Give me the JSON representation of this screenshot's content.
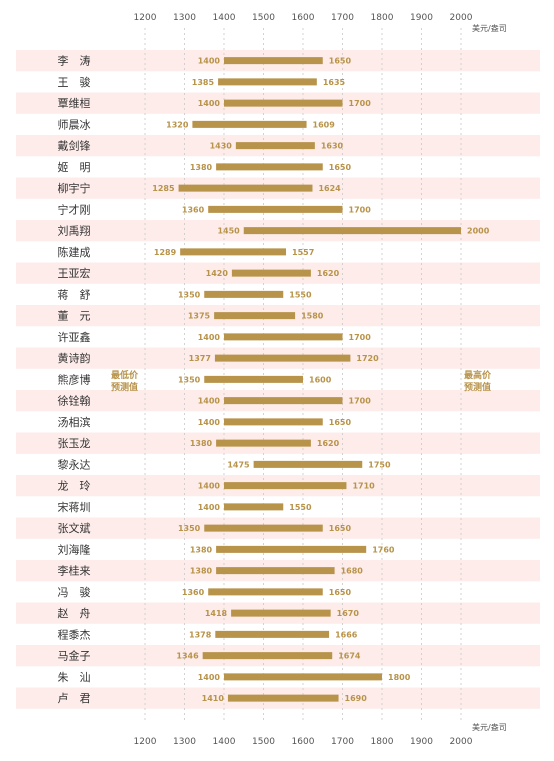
{
  "chart_data": {
    "type": "bar",
    "subtype": "floating-range",
    "unit": "美元/盎司",
    "left_label": [
      "最低价",
      "预测值"
    ],
    "right_label": [
      "最高价",
      "预测值"
    ],
    "xlim": [
      1200,
      2000
    ],
    "xticks": [
      1200,
      1300,
      1400,
      1500,
      1600,
      1700,
      1800,
      1900,
      2000
    ],
    "grid": true,
    "colors": {
      "bar": "#b8934a",
      "stripe": "#fdecea",
      "label": "#b8934a"
    },
    "rows": [
      {
        "name": "李　涛",
        "low": 1400,
        "high": 1650
      },
      {
        "name": "王　骏",
        "low": 1385,
        "high": 1635
      },
      {
        "name": "覃维桓",
        "low": 1400,
        "high": 1700
      },
      {
        "name": "师晨冰",
        "low": 1320,
        "high": 1609
      },
      {
        "name": "戴剑锋",
        "low": 1430,
        "high": 1630
      },
      {
        "name": "姬　明",
        "low": 1380,
        "high": 1650
      },
      {
        "name": "柳宇宁",
        "low": 1285,
        "high": 1624
      },
      {
        "name": "宁才刚",
        "low": 1360,
        "high": 1700
      },
      {
        "name": "刘禹翔",
        "low": 1450,
        "high": 2000
      },
      {
        "name": "陈建成",
        "low": 1289,
        "high": 1557
      },
      {
        "name": "王亚宏",
        "low": 1420,
        "high": 1620
      },
      {
        "name": "蒋　舒",
        "low": 1350,
        "high": 1550
      },
      {
        "name": "董　元",
        "low": 1375,
        "high": 1580
      },
      {
        "name": "许亚鑫",
        "low": 1400,
        "high": 1700
      },
      {
        "name": "黄诗韵",
        "low": 1377,
        "high": 1720
      },
      {
        "name": "熊彦博",
        "low": 1350,
        "high": 1600
      },
      {
        "name": "徐铨翰",
        "low": 1400,
        "high": 1700
      },
      {
        "name": "汤相滨",
        "low": 1400,
        "high": 1650
      },
      {
        "name": "张玉龙",
        "low": 1380,
        "high": 1620
      },
      {
        "name": "黎永达",
        "low": 1475,
        "high": 1750
      },
      {
        "name": "龙　玲",
        "low": 1400,
        "high": 1710
      },
      {
        "name": "宋蒋圳",
        "low": 1400,
        "high": 1550
      },
      {
        "name": "张文斌",
        "low": 1350,
        "high": 1650
      },
      {
        "name": "刘海隆",
        "low": 1380,
        "high": 1760
      },
      {
        "name": "李桂来",
        "low": 1380,
        "high": 1680
      },
      {
        "name": "冯　骏",
        "low": 1360,
        "high": 1650
      },
      {
        "name": "赵　舟",
        "low": 1418,
        "high": 1670
      },
      {
        "name": "程黍杰",
        "low": 1378,
        "high": 1666
      },
      {
        "name": "马金子",
        "low": 1346,
        "high": 1674
      },
      {
        "name": "朱　汕",
        "low": 1400,
        "high": 1800
      },
      {
        "name": "卢　君",
        "low": 1410,
        "high": 1690
      }
    ]
  }
}
